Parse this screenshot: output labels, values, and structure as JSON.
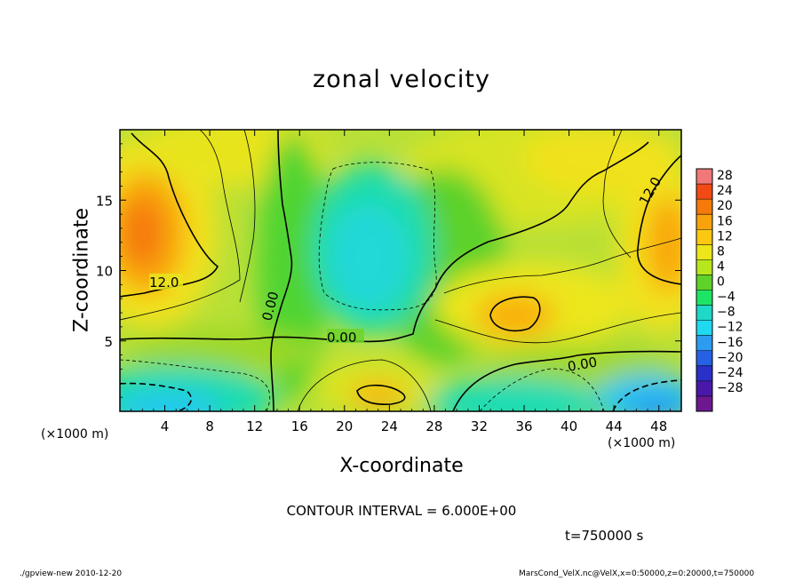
{
  "chart_data": {
    "type": "heatmap",
    "title": "zonal velocity",
    "xlabel": "X-coordinate",
    "ylabel": "Z-coordinate",
    "x_unit_label": "(×1000 m)",
    "xlim": [
      0,
      50
    ],
    "ylim": [
      0,
      20
    ],
    "x_ticks": [
      4,
      8,
      12,
      16,
      20,
      24,
      28,
      32,
      36,
      40,
      44,
      48
    ],
    "y_ticks": [
      5,
      10,
      15
    ],
    "colorbar": {
      "levels": [
        28,
        24,
        20,
        16,
        12,
        8,
        4,
        0,
        -4,
        -8,
        -12,
        -16,
        -20,
        -24,
        -28
      ],
      "colors": [
        "#f07878",
        "#f24a14",
        "#f57a0a",
        "#f9a20c",
        "#fcc812",
        "#ece61a",
        "#b8e61e",
        "#5fd22a",
        "#1ee464",
        "#1ed8c8",
        "#20d8f0",
        "#2c9cf0",
        "#2660e4",
        "#2a30c8",
        "#4a18a8",
        "#6e1890"
      ]
    },
    "contour_labels": [
      "12.0",
      "0.00",
      "0.00",
      "0.00",
      "12.0"
    ],
    "contour_interval": "CONTOUR INTERVAL = 6.000E+00",
    "time": "t=750000 s",
    "footer_left": "./gpview-new   2010-12-20",
    "footer_right": "MarsCond_VelX.nc@VelX,x=0:50000,z=0:20000,t=750000"
  }
}
